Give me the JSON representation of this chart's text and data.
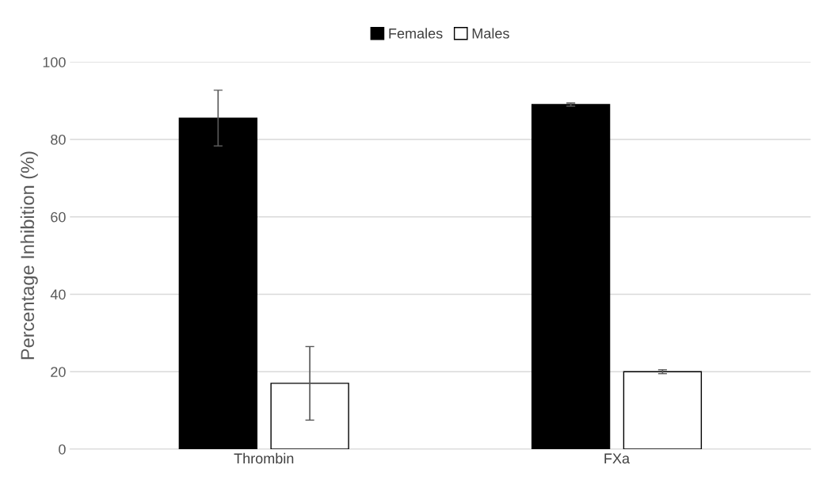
{
  "chart_data": {
    "type": "bar",
    "ylabel": "Percentage Inhibition (%)",
    "categories": [
      "Thrombin",
      "FXa"
    ],
    "series": [
      {
        "name": "Females",
        "color": "#000000",
        "values": [
          85.5,
          89.0
        ],
        "errors": [
          7.2,
          0.4
        ]
      },
      {
        "name": "Males",
        "color": "#ffffff",
        "values": [
          17.0,
          20.0
        ],
        "errors": [
          9.5,
          0.5
        ]
      }
    ],
    "ylim": [
      0,
      100
    ],
    "yticks": [
      0,
      20,
      40,
      60,
      80,
      100
    ],
    "grid": "y",
    "legend": "top"
  }
}
